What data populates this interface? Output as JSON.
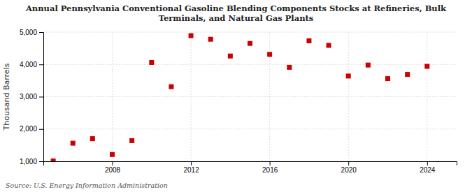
{
  "chart_data": {
    "type": "scatter",
    "title": "Annual Pennsylvania Conventional Gasoline Blending Components Stocks at Refineries, Bulk\nTerminals, and Natural Gas Plants",
    "ylabel": "Thousand Barrels",
    "annotations": [
      "Source: U.S. Energy Information Administration"
    ],
    "x": [
      2005,
      2006,
      2007,
      2008,
      2009,
      2010,
      2011,
      2012,
      2013,
      2014,
      2015,
      2016,
      2017,
      2018,
      2019,
      2020,
      2021,
      2022,
      2023,
      2024
    ],
    "values": [
      1010,
      1560,
      1700,
      1210,
      1640,
      4060,
      3310,
      4890,
      4780,
      4260,
      4650,
      4310,
      3910,
      4730,
      4590,
      3640,
      3980,
      3560,
      3690,
      3940
    ],
    "color": "#cc0000",
    "marker": "square",
    "xlim": [
      2004.5,
      2025.5
    ],
    "xticks": [
      2008,
      2012,
      2016,
      2020,
      2024
    ],
    "ylim": [
      1000,
      5000
    ],
    "yticks": [
      {
        "value": 1000,
        "label": "1,000"
      },
      {
        "value": 2000,
        "label": "2,000"
      },
      {
        "value": 3000,
        "label": "3,000"
      },
      {
        "value": 4000,
        "label": "4,000"
      },
      {
        "value": 5000,
        "label": "5,000"
      }
    ],
    "grid": true
  }
}
